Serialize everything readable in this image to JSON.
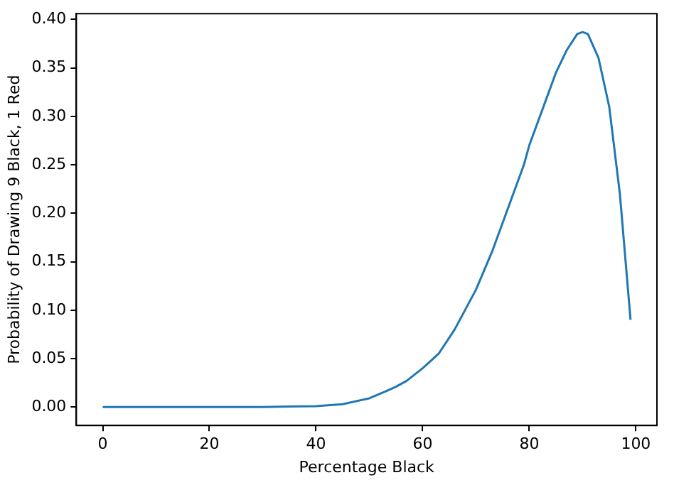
{
  "chart_data": {
    "type": "line",
    "xlabel": "Percentage Black",
    "ylabel": "Probability of Drawing 9 Black, 1 Red",
    "xlim": [
      -4.95,
      103.95
    ],
    "ylim": [
      -0.019,
      0.406
    ],
    "xticks": [
      0,
      20,
      40,
      60,
      80,
      100
    ],
    "yticks": [
      {
        "value": 0,
        "label": "0.00"
      },
      {
        "value": 0.05,
        "label": "0.05"
      },
      {
        "value": 0.1,
        "label": "0.10"
      },
      {
        "value": 0.15,
        "label": "0.15"
      },
      {
        "value": 0.2,
        "label": "0.20"
      },
      {
        "value": 0.25,
        "label": "0.25"
      },
      {
        "value": 0.3,
        "label": "0.30"
      },
      {
        "value": 0.35,
        "label": "0.35"
      },
      {
        "value": 0.4,
        "label": "0.40"
      }
    ],
    "grid": false,
    "legend": false,
    "marker": "none",
    "line_style": "solid",
    "series": [
      {
        "color": "#1f77b4",
        "x": [
          0,
          10,
          20,
          30,
          35,
          40,
          45,
          50,
          53,
          55,
          57,
          60,
          63,
          66,
          70,
          73,
          76,
          79,
          80,
          83,
          85,
          87,
          89,
          90,
          91,
          93,
          95,
          97,
          99
        ],
        "values": [
          0,
          0,
          0,
          0,
          0.0005,
          0.001,
          0.003,
          0.009,
          0.016,
          0.021,
          0.027,
          0.04,
          0.055,
          0.08,
          0.121,
          0.16,
          0.205,
          0.25,
          0.27,
          0.315,
          0.345,
          0.368,
          0.385,
          0.387,
          0.385,
          0.36,
          0.31,
          0.22,
          0.09
        ]
      }
    ]
  }
}
